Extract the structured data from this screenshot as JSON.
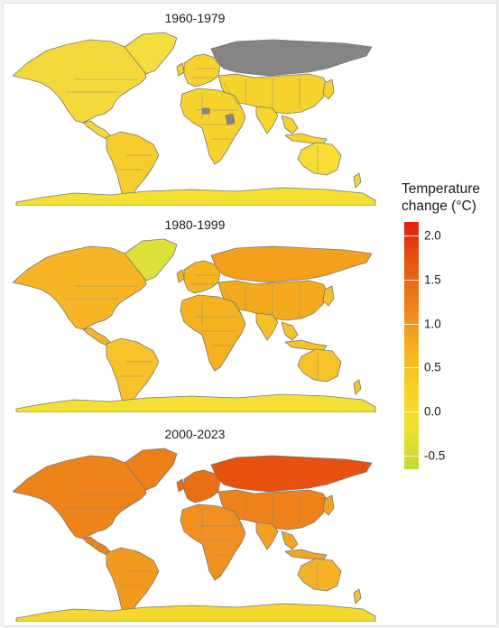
{
  "panels": [
    {
      "title": "1960-1979",
      "colors": {
        "na": "#f5d93a",
        "greenland": "#f2de3c",
        "sa": "#f6cd2c",
        "europe": "#f7d12e",
        "russia": "#848484",
        "africa": "#f6d22b",
        "asia": "#f6d22c",
        "india": "#f7d631",
        "seasia": "#f6d22e",
        "australia": "#f9dc36",
        "antarctica": "#f4e033",
        "nz": "#f4d52f",
        "missing": "#848484"
      }
    },
    {
      "title": "1980-1999",
      "colors": {
        "na": "#f7b424",
        "greenland": "#dde23a",
        "sa": "#f6c129",
        "europe": "#f6b420",
        "russia": "#f5a01c",
        "africa": "#f6b21f",
        "asia": "#f5aa1e",
        "india": "#f6c128",
        "seasia": "#f6c02a",
        "australia": "#f7c32a",
        "antarctica": "#f4e033",
        "nz": "#f6c229",
        "missing": "#848484"
      }
    },
    {
      "title": "2000-2023",
      "colors": {
        "na": "#ee8319",
        "greenland": "#ed7f18",
        "sa": "#f39a1e",
        "europe": "#ec6e13",
        "russia": "#e9520e",
        "africa": "#f19020",
        "asia": "#ee8119",
        "india": "#f3a022",
        "seasia": "#f3a424",
        "australia": "#f5b227",
        "antarctica": "#f4d82e",
        "nz": "#f4c22a",
        "missing": "#848484"
      }
    }
  ],
  "legend": {
    "title_line1": "Temperature",
    "title_line2": "change (°C)",
    "ticks": [
      {
        "label": "2.0",
        "value": 2.0
      },
      {
        "label": "1.5",
        "value": 1.5
      },
      {
        "label": "1.0",
        "value": 1.0
      },
      {
        "label": "0.5",
        "value": 0.5
      },
      {
        "label": "0.0",
        "value": 0.0
      },
      {
        "label": "-0.5",
        "value": -0.5
      }
    ],
    "range": [
      -0.65,
      2.15
    ],
    "colors": [
      "#c3d836",
      "#f0e030",
      "#f8cf28",
      "#f6ad20",
      "#ef8018",
      "#e85511",
      "#df1f0e"
    ]
  }
}
